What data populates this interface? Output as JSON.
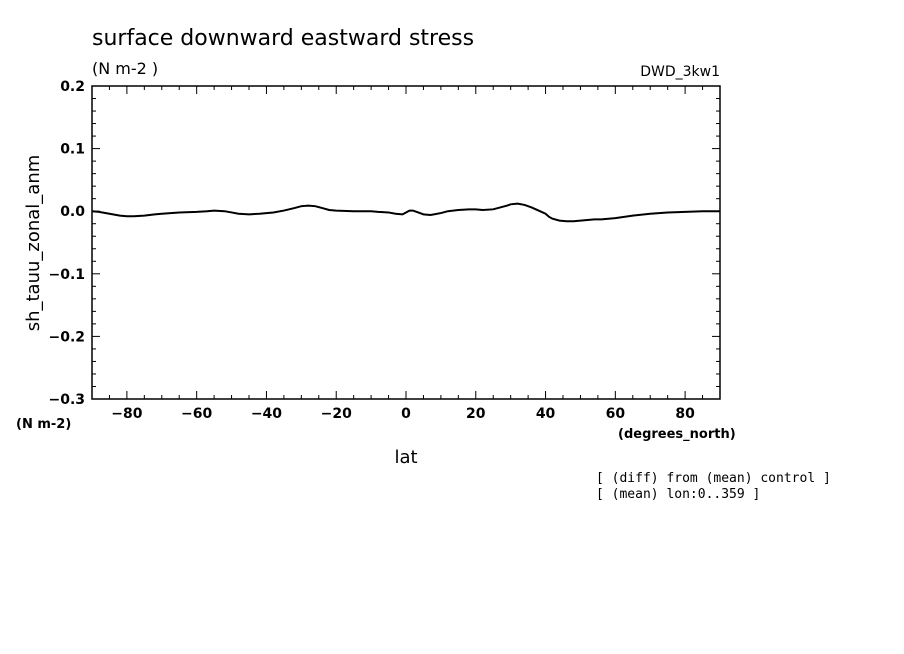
{
  "chart_data": {
    "type": "line",
    "title": "surface downward eastward stress",
    "units": "(N m-2  )",
    "experiment": "DWD_3kw1",
    "xlabel": "lat",
    "xunits": "(degrees_north)",
    "ylabel": "sh_tauu_zonal_anm",
    "yunits": "(N m-2)",
    "xlim": [
      -90,
      90
    ],
    "ylim": [
      -0.3,
      0.2
    ],
    "xticks": [
      -80,
      -60,
      -40,
      -20,
      0,
      20,
      40,
      60,
      80
    ],
    "yticks": [
      -0.3,
      -0.2,
      -0.1,
      0.0,
      0.1,
      0.2
    ],
    "ytick_labels": [
      "−0.3",
      "−0.2",
      "−0.1",
      "0.0",
      "0.1",
      "0.2"
    ],
    "xtick_labels": [
      "−80",
      "−60",
      "−40",
      "−20",
      "0",
      "20",
      "40",
      "60",
      "80"
    ],
    "grid": false,
    "line_color": "#000000",
    "series": [
      {
        "x": [
          -90,
          -88,
          -86,
          -84,
          -82,
          -80,
          -78,
          -75,
          -72,
          -70,
          -65,
          -60,
          -57,
          -55,
          -52,
          -50,
          -48,
          -45,
          -42,
          -40,
          -38,
          -35,
          -32,
          -30,
          -28,
          -26,
          -24,
          -22,
          -20,
          -15,
          -10,
          -8,
          -5,
          -3,
          -1,
          0,
          1,
          2,
          3,
          4,
          5,
          7,
          8,
          10,
          12,
          15,
          18,
          20,
          22,
          25,
          27,
          29,
          30,
          32,
          34,
          36,
          38,
          40,
          41,
          42,
          44,
          46,
          48,
          50,
          52,
          54,
          56,
          60,
          65,
          70,
          75,
          80,
          85,
          90
        ],
        "y": [
          0.0,
          -0.001,
          -0.003,
          -0.005,
          -0.007,
          -0.008,
          -0.008,
          -0.007,
          -0.005,
          -0.004,
          -0.002,
          -0.001,
          0.0,
          0.001,
          0.0,
          -0.002,
          -0.004,
          -0.005,
          -0.004,
          -0.003,
          -0.002,
          0.001,
          0.005,
          0.008,
          0.009,
          0.008,
          0.005,
          0.002,
          0.001,
          0.0,
          0.0,
          -0.001,
          -0.002,
          -0.004,
          -0.005,
          -0.002,
          0.001,
          0.001,
          -0.001,
          -0.003,
          -0.005,
          -0.006,
          -0.005,
          -0.003,
          0.0,
          0.002,
          0.003,
          0.003,
          0.002,
          0.003,
          0.006,
          0.009,
          0.011,
          0.012,
          0.01,
          0.006,
          0.001,
          -0.004,
          -0.009,
          -0.012,
          -0.015,
          -0.016,
          -0.016,
          -0.015,
          -0.014,
          -0.013,
          -0.013,
          -0.011,
          -0.007,
          -0.004,
          -0.002,
          -0.001,
          0.0,
          0.0
        ]
      }
    ]
  },
  "notes": [
    "[ (diff) from (mean) control ]",
    "[ (mean) lon:0..359 ]"
  ]
}
